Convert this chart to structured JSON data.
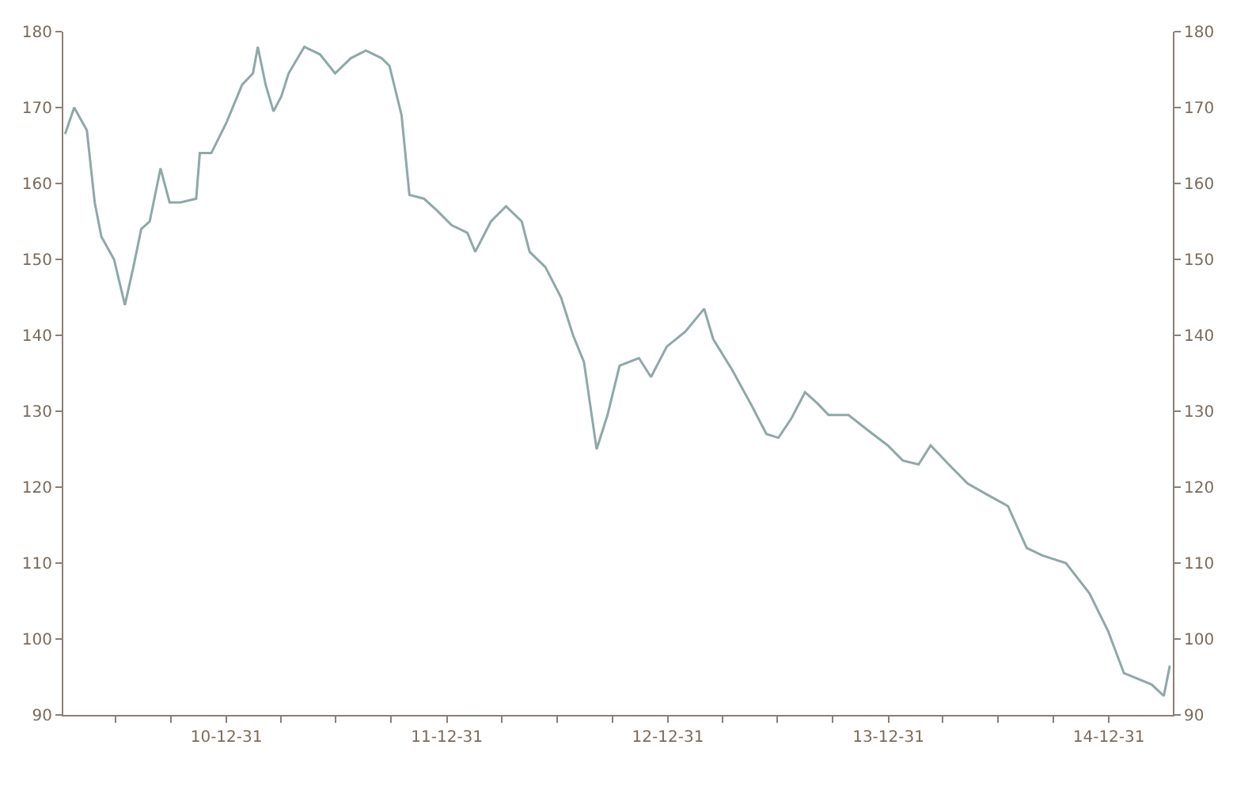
{
  "chart_data": {
    "type": "line",
    "x": [
      "2010-04-08",
      "2010-04-23",
      "2010-05-14",
      "2010-05-27",
      "2010-06-07",
      "2010-06-28",
      "2010-07-16",
      "2010-07-30",
      "2010-08-12",
      "2010-08-26",
      "2010-09-13",
      "2010-09-28",
      "2010-10-16",
      "2010-11-11",
      "2010-11-17",
      "2010-12-06",
      "2010-12-31",
      "2011-01-26",
      "2011-02-13",
      "2011-02-21",
      "2011-03-06",
      "2011-03-19",
      "2011-04-01",
      "2011-04-13",
      "2011-05-09",
      "2011-06-04",
      "2011-06-29",
      "2011-07-25",
      "2011-08-19",
      "2011-09-14",
      "2011-09-27",
      "2011-10-17",
      "2011-10-30",
      "2011-11-23",
      "2011-12-14",
      "2012-01-08",
      "2012-02-03",
      "2012-02-16",
      "2012-03-13",
      "2012-04-07",
      "2012-05-03",
      "2012-05-16",
      "2012-06-11",
      "2012-07-07",
      "2012-07-27",
      "2012-08-14",
      "2012-09-04",
      "2012-09-22",
      "2012-10-12",
      "2012-11-13",
      "2012-12-03",
      "2012-12-29",
      "2013-01-29",
      "2013-03-01",
      "2013-03-16",
      "2013-04-16",
      "2013-05-17",
      "2013-06-12",
      "2013-07-02",
      "2013-07-23",
      "2013-08-15",
      "2013-09-05",
      "2013-09-23",
      "2013-10-26",
      "2013-11-27",
      "2013-12-30",
      "2014-01-24",
      "2014-02-19",
      "2014-03-11",
      "2014-04-10",
      "2014-05-11",
      "2014-06-13",
      "2014-07-17",
      "2014-08-17",
      "2014-09-12",
      "2014-10-21",
      "2014-11-29",
      "2014-12-30",
      "2015-01-25",
      "2015-03-12",
      "2015-04-01",
      "2015-04-11"
    ],
    "series": [
      {
        "color": "#8fa8a8",
        "values": [
          166.5,
          170,
          167,
          157.5,
          153,
          150,
          144,
          149,
          154,
          155,
          162,
          157.5,
          157.5,
          158,
          164,
          164,
          168,
          173,
          174.5,
          178,
          173,
          169.5,
          171.5,
          174.5,
          178,
          177,
          174.5,
          176.5,
          177.5,
          176.5,
          175.5,
          169,
          158.5,
          158,
          156.5,
          154.5,
          153.5,
          151,
          155,
          157,
          155,
          151,
          149,
          145,
          140,
          136.5,
          125,
          129.5,
          136,
          137,
          134.5,
          138.5,
          140.5,
          143.5,
          139.5,
          135.5,
          131,
          127,
          126.5,
          129,
          132.5,
          131,
          129.5,
          129.5,
          127.5,
          125.5,
          123.5,
          123,
          125.5,
          123,
          120.5,
          119,
          117.5,
          112,
          111,
          110,
          106,
          101,
          95.5,
          94,
          92.5,
          96.5
        ]
      }
    ],
    "xlim": [
      "2010-04-05",
      "2015-04-16"
    ],
    "xticks": [
      {
        "value": "2010-06-30",
        "label": null
      },
      {
        "value": "2010-09-30",
        "label": null
      },
      {
        "value": "2010-12-31",
        "label": "10-12-31"
      },
      {
        "value": "2011-03-31",
        "label": null
      },
      {
        "value": "2011-06-30",
        "label": null
      },
      {
        "value": "2011-09-30",
        "label": null
      },
      {
        "value": "2011-12-31",
        "label": "11-12-31"
      },
      {
        "value": "2012-03-31",
        "label": null
      },
      {
        "value": "2012-06-30",
        "label": null
      },
      {
        "value": "2012-09-30",
        "label": null
      },
      {
        "value": "2012-12-31",
        "label": "12-12-31"
      },
      {
        "value": "2013-03-31",
        "label": null
      },
      {
        "value": "2013-06-30",
        "label": null
      },
      {
        "value": "2013-09-30",
        "label": null
      },
      {
        "value": "2013-12-31",
        "label": "13-12-31"
      },
      {
        "value": "2014-03-31",
        "label": null
      },
      {
        "value": "2014-06-30",
        "label": null
      },
      {
        "value": "2014-09-30",
        "label": null
      },
      {
        "value": "2014-12-31",
        "label": "14-12-31"
      }
    ],
    "ylim": [
      90,
      180
    ],
    "yticks": [
      90,
      100,
      110,
      120,
      130,
      140,
      150,
      160,
      170,
      180
    ],
    "y2lim": [
      90,
      180
    ],
    "y2ticks": [
      90,
      100,
      110,
      120,
      130,
      140,
      150,
      160,
      170,
      180
    ],
    "marker": "none",
    "line_style": "solid"
  }
}
